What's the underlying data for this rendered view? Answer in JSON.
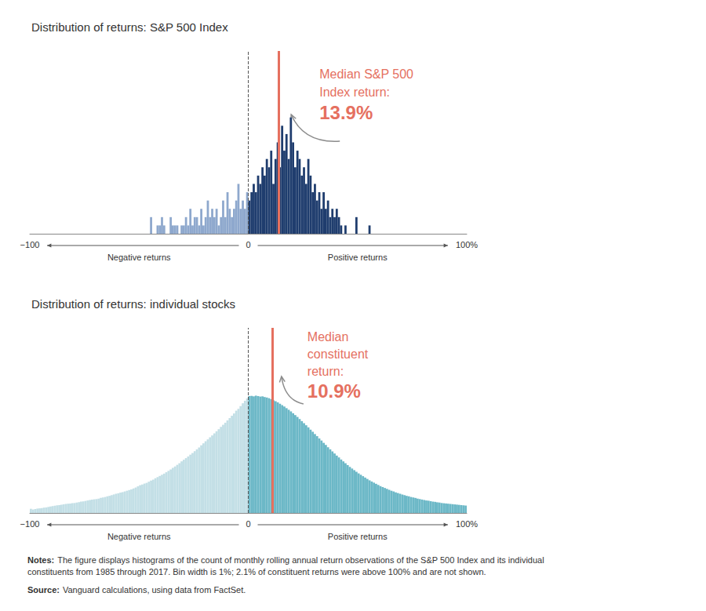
{
  "chart_data": [
    {
      "type": "histogram",
      "title": "Distribution of returns: S&P 500 Index",
      "xlim": [
        -100,
        100
      ],
      "xticks": [
        {
          "value": -100,
          "label": "−100"
        },
        0,
        {
          "value": 100,
          "label": "100%"
        }
      ],
      "ylim": [
        0,
        22
      ],
      "tick_labels": "x",
      "grid": false,
      "reference_line": 0,
      "series": [
        {
          "name": "Negative returns",
          "color": "#8ea8cd",
          "bins": [
            -45,
            -44,
            -43,
            -42,
            -41,
            -40,
            -39,
            -38,
            -37,
            -36,
            -35,
            -34,
            -33,
            -32,
            -31,
            -30,
            -29,
            -28,
            -27,
            -26,
            -25,
            -24,
            -23,
            -22,
            -21,
            -20,
            -19,
            -18,
            -17,
            -16,
            -15,
            -14,
            -13,
            -12,
            -11,
            -10,
            -9,
            -8,
            -7,
            -6,
            -5,
            -4,
            -3,
            -2,
            -1,
            0
          ],
          "counts": [
            2,
            0,
            0,
            1,
            1,
            2,
            1,
            0,
            0,
            2,
            1,
            1,
            1,
            0,
            1,
            1,
            2,
            1,
            3,
            1,
            2,
            2,
            1,
            3,
            1,
            2,
            4,
            2,
            3,
            2,
            3,
            1,
            2,
            4,
            2,
            5,
            3,
            2,
            3,
            4,
            6,
            3,
            4,
            3,
            5
          ]
        },
        {
          "name": "Positive returns",
          "color": "#1f3d6e",
          "bins": [
            0,
            1,
            2,
            3,
            4,
            5,
            6,
            7,
            8,
            9,
            10,
            11,
            12,
            13,
            14,
            15,
            16,
            17,
            18,
            19,
            20,
            21,
            22,
            23,
            24,
            25,
            26,
            27,
            28,
            29,
            30,
            31,
            32,
            33,
            34,
            35,
            36,
            37,
            38,
            39,
            40,
            41,
            42,
            43,
            44,
            45,
            46,
            47,
            48,
            49,
            50,
            51,
            52,
            53,
            54,
            55,
            56
          ],
          "counts": [
            4,
            5,
            6,
            5,
            7,
            6,
            8,
            7,
            9,
            8,
            10,
            6,
            9,
            11,
            8,
            13,
            10,
            12,
            9,
            14,
            11,
            8,
            10,
            9,
            7,
            8,
            6,
            9,
            7,
            5,
            6,
            4,
            5,
            3,
            5,
            3,
            4,
            2,
            3,
            2,
            3,
            2,
            1,
            0,
            1,
            0,
            0,
            0,
            0,
            2,
            0,
            0,
            0,
            0,
            0,
            1
          ]
        }
      ],
      "annotation": {
        "text": [
          "Median S&P 500",
          "Index return:"
        ],
        "value": 13.9,
        "value_label": "13.9%",
        "color": "#e5705f"
      }
    },
    {
      "type": "histogram",
      "title": "Distribution of returns: individual stocks",
      "xlim": [
        -100,
        100
      ],
      "xticks": [
        {
          "value": -100,
          "label": "−100"
        },
        0,
        {
          "value": 100,
          "label": "100%"
        }
      ],
      "ylim": [
        0,
        8000
      ],
      "tick_labels": "x",
      "grid": false,
      "reference_line": 0,
      "series": [
        {
          "name": "Negative returns",
          "color": "#c3dfe6",
          "bins": [
            -100,
            -99,
            -98,
            -97,
            -96,
            -95,
            -94,
            -93,
            -92,
            -91,
            -90,
            -89,
            -88,
            -87,
            -86,
            -85,
            -84,
            -83,
            -82,
            -81,
            -80,
            -79,
            -78,
            -77,
            -76,
            -75,
            -74,
            -73,
            -72,
            -71,
            -70,
            -69,
            -68,
            -67,
            -66,
            -65,
            -64,
            -63,
            -62,
            -61,
            -60,
            -59,
            -58,
            -57,
            -56,
            -55,
            -54,
            -53,
            -52,
            -51,
            -50,
            -49,
            -48,
            -47,
            -46,
            -45,
            -44,
            -43,
            -42,
            -41,
            -40,
            -39,
            -38,
            -37,
            -36,
            -35,
            -34,
            -33,
            -32,
            -31,
            -30,
            -29,
            -28,
            -27,
            -26,
            -25,
            -24,
            -23,
            -22,
            -21,
            -20,
            -19,
            -18,
            -17,
            -16,
            -15,
            -14,
            -13,
            -12,
            -11,
            -10,
            -9,
            -8,
            -7,
            -6,
            -5,
            -4,
            -3,
            -2,
            -1,
            0
          ],
          "counts": [
            180,
            150,
            170,
            190,
            200,
            210,
            230,
            240,
            260,
            280,
            300,
            310,
            330,
            340,
            360,
            370,
            390,
            400,
            410,
            420,
            430,
            450,
            470,
            490,
            500,
            520,
            540,
            560,
            580,
            590,
            600,
            620,
            650,
            670,
            690,
            720,
            740,
            770,
            800,
            830,
            850,
            880,
            900,
            930,
            960,
            990,
            1020,
            1060,
            1100,
            1150,
            1200,
            1230,
            1270,
            1300,
            1350,
            1400,
            1440,
            1500,
            1550,
            1600,
            1650,
            1700,
            1760,
            1820,
            1880,
            1950,
            2010,
            2080,
            2150,
            2230,
            2300,
            2370,
            2440,
            2520,
            2590,
            2670,
            2750,
            2830,
            2920,
            3010,
            3100,
            3180,
            3270,
            3350,
            3440,
            3530,
            3620,
            3720,
            3810,
            3900,
            4000,
            4100,
            4200,
            4300,
            4420,
            4500,
            4620,
            4740,
            4850,
            4950
          ]
        },
        {
          "name": "Positive returns",
          "color": "#6cb8c7",
          "bins": [
            0,
            1,
            2,
            3,
            4,
            5,
            6,
            7,
            8,
            9,
            10,
            11,
            12,
            13,
            14,
            15,
            16,
            17,
            18,
            19,
            20,
            21,
            22,
            23,
            24,
            25,
            26,
            27,
            28,
            29,
            30,
            31,
            32,
            33,
            34,
            35,
            36,
            37,
            38,
            39,
            40,
            41,
            42,
            43,
            44,
            45,
            46,
            47,
            48,
            49,
            50,
            51,
            52,
            53,
            54,
            55,
            56,
            57,
            58,
            59,
            60,
            61,
            62,
            63,
            64,
            65,
            66,
            67,
            68,
            69,
            70,
            71,
            72,
            73,
            74,
            75,
            76,
            77,
            78,
            79,
            80,
            81,
            82,
            83,
            84,
            85,
            86,
            87,
            88,
            89,
            90,
            91,
            92,
            93,
            94,
            95,
            96,
            97,
            98,
            99,
            100
          ],
          "counts": [
            5050,
            5060,
            5040,
            5070,
            5050,
            5030,
            5040,
            5010,
            4990,
            4960,
            4920,
            4870,
            4830,
            4780,
            4720,
            4660,
            4600,
            4530,
            4460,
            4390,
            4310,
            4230,
            4150,
            4060,
            3970,
            3880,
            3790,
            3700,
            3600,
            3510,
            3410,
            3320,
            3220,
            3130,
            3030,
            2940,
            2840,
            2750,
            2660,
            2570,
            2480,
            2400,
            2310,
            2230,
            2150,
            2070,
            1990,
            1920,
            1850,
            1780,
            1710,
            1650,
            1590,
            1530,
            1470,
            1410,
            1360,
            1310,
            1260,
            1210,
            1160,
            1120,
            1080,
            1040,
            1000,
            960,
            930,
            890,
            860,
            830,
            800,
            770,
            740,
            720,
            690,
            670,
            650,
            620,
            600,
            580,
            560,
            540,
            530,
            510,
            490,
            480,
            460,
            450,
            430,
            420,
            410,
            400,
            390,
            380,
            370,
            360,
            350,
            340,
            330,
            320
          ]
        }
      ],
      "annotation": {
        "text": [
          "Median",
          "constituent",
          "return:"
        ],
        "value": 10.9,
        "value_label": "10.9%",
        "color": "#e5705f"
      }
    }
  ],
  "notes": {
    "label": "Notes:",
    "text": "The figure displays histograms of the count of monthly rolling annual return observations of the S&P 500 Index and its individual constituents from 1985 through 2017. Bin width is 1%; 2.1% of constituent returns were above 100% and are not shown."
  },
  "source": {
    "label": "Source:",
    "text": "Vanguard calculations, using data from FactSet."
  }
}
